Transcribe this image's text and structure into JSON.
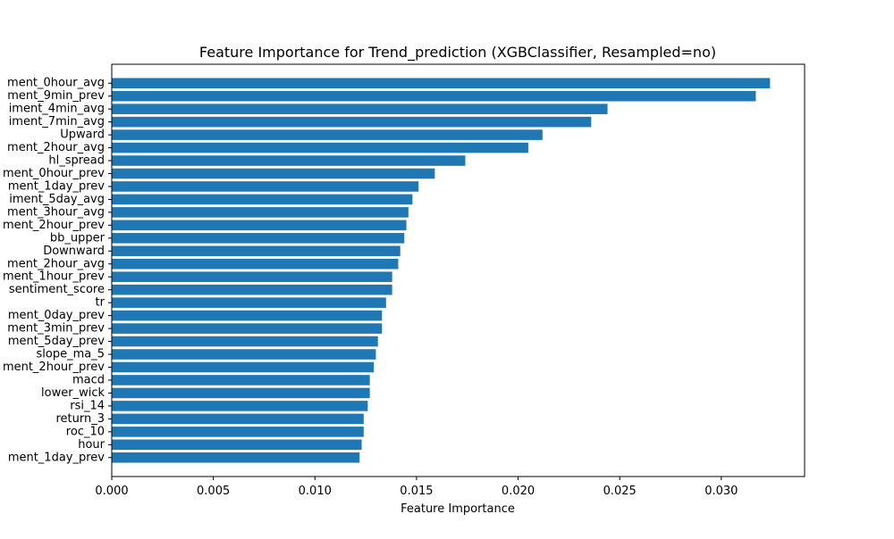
{
  "chart_data": {
    "type": "bar",
    "orientation": "horizontal",
    "title": "Feature Importance for Trend_prediction (XGBClassifier, Resampled=no)",
    "xlabel": "Feature Importance",
    "ylabel": "",
    "xlim": [
      0.0,
      0.0341
    ],
    "x_ticks": [
      "0.000",
      "0.005",
      "0.010",
      "0.015",
      "0.020",
      "0.025",
      "0.030"
    ],
    "x_tick_values": [
      0.0,
      0.005,
      0.01,
      0.015,
      0.02,
      0.025,
      0.03
    ],
    "bar_color": "#1f77b4",
    "grid": false,
    "categories": [
      "ment_0hour_avg",
      "ment_9min_prev",
      "iment_4min_avg",
      "iment_7min_avg",
      "Upward",
      "ment_2hour_avg",
      "hl_spread",
      "ment_0hour_prev",
      "ment_1day_prev",
      "iment_5day_avg",
      "ment_3hour_avg",
      "ment_2hour_prev",
      "bb_upper",
      "Downward",
      "ment_2hour_avg",
      "ment_1hour_prev",
      "sentiment_score",
      "tr",
      "ment_0day_prev",
      "ment_3min_prev",
      "ment_5day_prev",
      "slope_ma_5",
      "ment_2hour_prev",
      "macd",
      "lower_wick",
      "rsi_14",
      "return_3",
      "roc_10",
      "hour",
      "ment_1day_prev"
    ],
    "values": [
      0.0324,
      0.0317,
      0.0244,
      0.0236,
      0.0212,
      0.0205,
      0.0174,
      0.0159,
      0.0151,
      0.0148,
      0.0146,
      0.0145,
      0.0144,
      0.0142,
      0.0141,
      0.0138,
      0.0138,
      0.0135,
      0.0133,
      0.0133,
      0.0131,
      0.013,
      0.0129,
      0.0127,
      0.0127,
      0.0126,
      0.0124,
      0.0124,
      0.0123,
      0.0122
    ]
  }
}
